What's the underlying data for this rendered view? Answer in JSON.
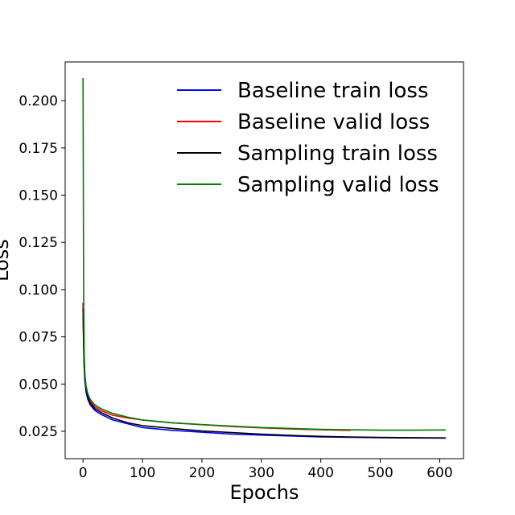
{
  "chart_data": {
    "type": "line",
    "title": "",
    "xlabel": "Epochs",
    "ylabel": "Loss",
    "xlim": [
      -30,
      640
    ],
    "ylim": [
      0.0105,
      0.2205
    ],
    "x_ticks": [
      0,
      100,
      200,
      300,
      400,
      500,
      600
    ],
    "x_tick_labels": [
      "0",
      "100",
      "200",
      "300",
      "400",
      "500",
      "600"
    ],
    "y_ticks": [
      0.025,
      0.05,
      0.075,
      0.1,
      0.125,
      0.15,
      0.175,
      0.2
    ],
    "y_tick_labels": [
      "0.025",
      "0.050",
      "0.075",
      "0.100",
      "0.125",
      "0.150",
      "0.175",
      "0.200"
    ],
    "grid": false,
    "legend_position": "top-right",
    "series": [
      {
        "name": "Baseline train loss",
        "color": "#0000ff",
        "x": [
          0,
          1,
          2,
          3,
          5,
          8,
          12,
          20,
          30,
          50,
          75,
          100,
          150,
          200,
          250,
          300,
          350,
          400,
          450,
          500,
          550,
          610
        ],
        "y": [
          0.093,
          0.075,
          0.06,
          0.052,
          0.046,
          0.042,
          0.039,
          0.036,
          0.034,
          0.031,
          0.029,
          0.027,
          0.0255,
          0.0245,
          0.0235,
          0.023,
          0.0225,
          0.022,
          0.0218,
          0.0216,
          0.0215,
          0.0214
        ]
      },
      {
        "name": "Baseline valid loss",
        "color": "#ff0000",
        "x": [
          0,
          1,
          2,
          3,
          5,
          8,
          12,
          20,
          30,
          50,
          75,
          100,
          150,
          200,
          250,
          300,
          350,
          400,
          450
        ],
        "y": [
          0.092,
          0.07,
          0.06,
          0.054,
          0.048,
          0.044,
          0.041,
          0.038,
          0.036,
          0.0335,
          0.032,
          0.031,
          0.0295,
          0.0285,
          0.0275,
          0.0268,
          0.0262,
          0.0258,
          0.0255
        ]
      },
      {
        "name": "Sampling train loss",
        "color": "#000000",
        "x": [
          0,
          1,
          2,
          3,
          5,
          8,
          12,
          20,
          30,
          50,
          75,
          100,
          150,
          200,
          250,
          300,
          350,
          400,
          450,
          500,
          550,
          610
        ],
        "y": [
          0.09,
          0.072,
          0.06,
          0.053,
          0.047,
          0.043,
          0.04,
          0.037,
          0.035,
          0.032,
          0.0295,
          0.028,
          0.0265,
          0.0252,
          0.0243,
          0.0235,
          0.0228,
          0.0223,
          0.022,
          0.0218,
          0.0216,
          0.0215
        ]
      },
      {
        "name": "Sampling valid loss",
        "color": "#008000",
        "x": [
          0,
          1,
          2,
          3,
          5,
          8,
          12,
          20,
          30,
          50,
          75,
          100,
          150,
          200,
          250,
          300,
          350,
          400,
          450,
          500,
          550,
          610
        ],
        "y": [
          0.212,
          0.1,
          0.068,
          0.056,
          0.049,
          0.045,
          0.042,
          0.039,
          0.037,
          0.0345,
          0.0325,
          0.031,
          0.0295,
          0.0285,
          0.0277,
          0.027,
          0.0265,
          0.026,
          0.0258,
          0.0256,
          0.0256,
          0.0257
        ]
      }
    ]
  }
}
